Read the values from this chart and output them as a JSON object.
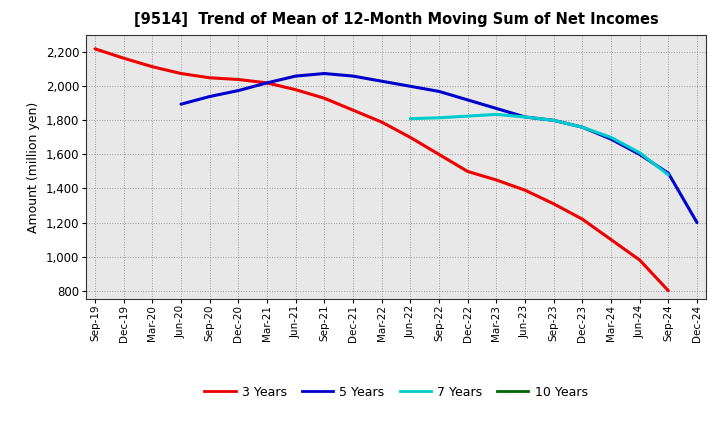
{
  "title": "[9514]  Trend of Mean of 12-Month Moving Sum of Net Incomes",
  "ylabel": "Amount (million yen)",
  "ylim": [
    750,
    2300
  ],
  "yticks": [
    800,
    1000,
    1200,
    1400,
    1600,
    1800,
    2000,
    2200
  ],
  "background_color": "#e8e8e8",
  "plot_bg_color": "#e8e8e8",
  "grid_color": "#999999",
  "x_labels": [
    "Sep-19",
    "Dec-19",
    "Mar-20",
    "Jun-20",
    "Sep-20",
    "Dec-20",
    "Mar-21",
    "Jun-21",
    "Sep-21",
    "Dec-21",
    "Mar-22",
    "Jun-22",
    "Sep-22",
    "Dec-22",
    "Mar-23",
    "Jun-23",
    "Sep-23",
    "Dec-23",
    "Mar-24",
    "Jun-24",
    "Sep-24",
    "Dec-24"
  ],
  "y3_x": [
    0,
    1,
    2,
    3,
    4,
    5,
    6,
    7,
    8,
    9,
    10,
    11,
    12,
    13,
    14,
    15,
    16,
    17,
    18,
    19,
    20
  ],
  "y3_v": [
    2220,
    2165,
    2115,
    2075,
    2050,
    2040,
    2020,
    1980,
    1930,
    1860,
    1790,
    1700,
    1600,
    1500,
    1450,
    1390,
    1310,
    1220,
    1100,
    980,
    800
  ],
  "y5_x": [
    3,
    4,
    5,
    6,
    7,
    8,
    9,
    10,
    11,
    12,
    13,
    14,
    15,
    16,
    17,
    18,
    19,
    20,
    21
  ],
  "y5_v": [
    1895,
    1940,
    1975,
    2020,
    2060,
    2075,
    2060,
    2030,
    2000,
    1970,
    1920,
    1870,
    1820,
    1800,
    1760,
    1690,
    1600,
    1490,
    1200
  ],
  "y7_x": [
    11,
    12,
    13,
    14,
    15,
    16,
    17,
    18,
    19,
    20
  ],
  "y7_v": [
    1810,
    1815,
    1825,
    1835,
    1820,
    1800,
    1760,
    1700,
    1610,
    1480
  ],
  "color_3y": "#ee0000",
  "color_5y": "#0000cc",
  "color_7y": "#00cccc",
  "color_10y": "#006600",
  "linewidth": 2.2,
  "legend_items": [
    "3 Years",
    "5 Years",
    "7 Years",
    "10 Years"
  ],
  "legend_colors": [
    "#ee0000",
    "#0000cc",
    "#00cccc",
    "#006600"
  ]
}
